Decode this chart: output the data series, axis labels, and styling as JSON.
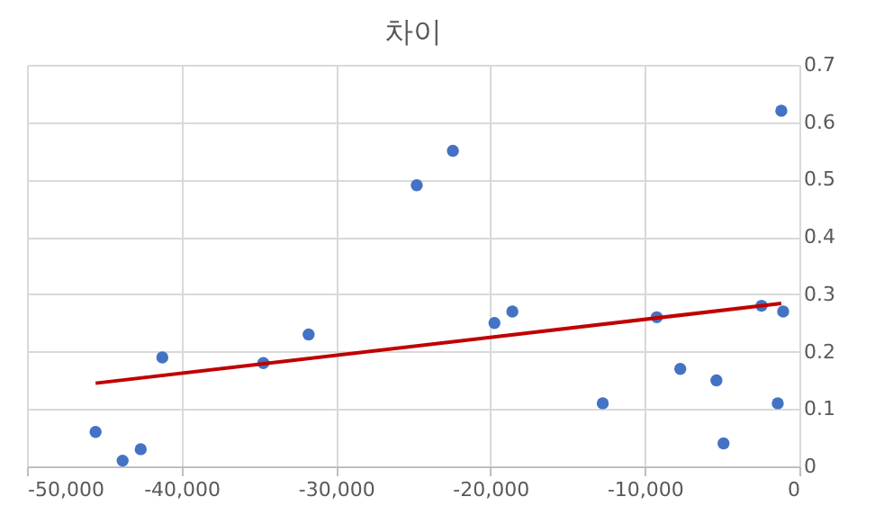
{
  "chart_data": {
    "type": "scatter",
    "title": "차이",
    "grid": true,
    "xlim": [
      -50000,
      0
    ],
    "xticks": [
      {
        "value": -50000,
        "label": "-50,000"
      },
      {
        "value": -40000,
        "label": "-40,000"
      },
      {
        "value": -30000,
        "label": "-30,000"
      },
      {
        "value": -20000,
        "label": "-20,000"
      },
      {
        "value": -10000,
        "label": "-10,000"
      },
      0
    ],
    "ylim": [
      0,
      0.7
    ],
    "yticks": [
      0,
      0.1,
      0.2,
      0.3,
      0.4,
      0.5,
      0.6,
      0.7
    ],
    "series": [
      {
        "color": "#4472c4",
        "marker": "circle",
        "x": [
          -45560,
          -43810,
          -42640,
          -41240,
          -34700,
          -31770,
          -24770,
          -22430,
          -19740,
          -18580,
          -12730,
          -9230,
          -7710,
          -5370,
          -4910,
          -2450,
          -1400,
          -1170,
          -1050
        ],
        "values": [
          0.06,
          0.01,
          0.03,
          0.19,
          0.18,
          0.23,
          0.49,
          0.55,
          0.25,
          0.27,
          0.11,
          0.26,
          0.17,
          0.15,
          0.04,
          0.28,
          0.11,
          0.62,
          0.27
        ]
      },
      {
        "type": "line",
        "color": "#c00000",
        "marker": "none",
        "x": [
          -45560,
          -1170
        ],
        "values": [
          0.145,
          0.284
        ]
      }
    ]
  }
}
